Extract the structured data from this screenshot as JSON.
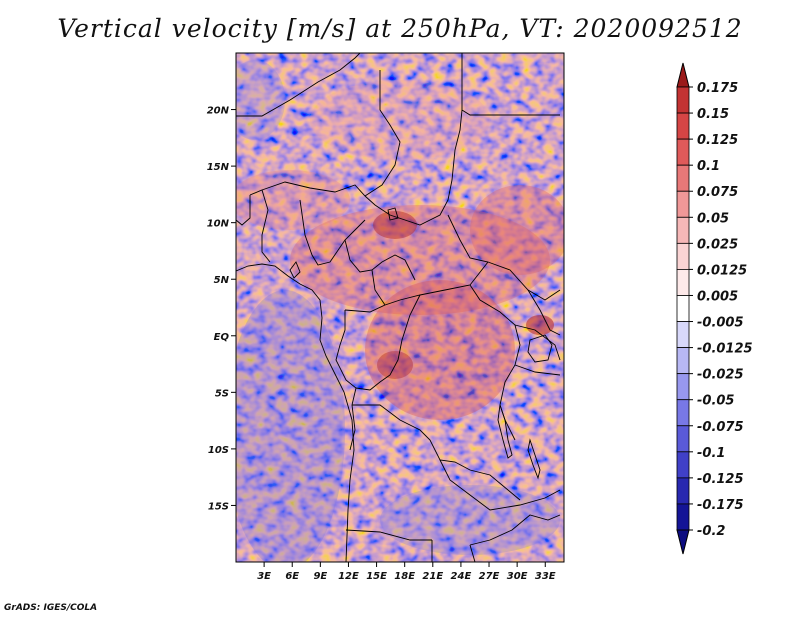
{
  "title": "Vertical velocity [m/s] at 250hPa, VT: 2020092512",
  "credit": "GrADS: IGES/COLA",
  "map": {
    "lon_range": [
      0,
      35
    ],
    "lat_range": [
      -20,
      25
    ],
    "lat_ticks": [
      {
        "value": 20,
        "label": "20N"
      },
      {
        "value": 15,
        "label": "15N"
      },
      {
        "value": 10,
        "label": "10N"
      },
      {
        "value": 5,
        "label": "5N"
      },
      {
        "value": 0,
        "label": "EQ"
      },
      {
        "value": -5,
        "label": "5S"
      },
      {
        "value": -10,
        "label": "10S"
      },
      {
        "value": -15,
        "label": "15S"
      }
    ],
    "lon_ticks": [
      {
        "value": 3,
        "label": "3E"
      },
      {
        "value": 6,
        "label": "6E"
      },
      {
        "value": 9,
        "label": "9E"
      },
      {
        "value": 12,
        "label": "12E"
      },
      {
        "value": 15,
        "label": "15E"
      },
      {
        "value": 18,
        "label": "18E"
      },
      {
        "value": 21,
        "label": "21E"
      },
      {
        "value": 24,
        "label": "24E"
      },
      {
        "value": 27,
        "label": "27E"
      },
      {
        "value": 30,
        "label": "30E"
      },
      {
        "value": 33,
        "label": "33E"
      }
    ]
  },
  "colorbar": {
    "levels": [
      {
        "label": "0.175",
        "color": "#b22222"
      },
      {
        "label": "0.15",
        "color": "#c33333"
      },
      {
        "label": "0.125",
        "color": "#d54545"
      },
      {
        "label": "0.1",
        "color": "#e05a5a"
      },
      {
        "label": "0.075",
        "color": "#e87878"
      },
      {
        "label": "0.05",
        "color": "#f09898"
      },
      {
        "label": "0.025",
        "color": "#f6b8b8"
      },
      {
        "label": "0.0125",
        "color": "#fad4d4"
      },
      {
        "label": "0.005",
        "color": "#fde9e9"
      },
      {
        "label": "-0.005",
        "color": "#ffffff"
      },
      {
        "label": "-0.0125",
        "color": "#d8d8fa"
      },
      {
        "label": "-0.025",
        "color": "#b8b8f4"
      },
      {
        "label": "-0.05",
        "color": "#9898ee"
      },
      {
        "label": "-0.075",
        "color": "#7878e6"
      },
      {
        "label": "-0.1",
        "color": "#5a5ad8"
      },
      {
        "label": "-0.125",
        "color": "#4040c8"
      },
      {
        "label": "-0.175",
        "color": "#2828b0"
      },
      {
        "label": "-0.2",
        "color": "#141496"
      }
    ],
    "top_arrow_color": "#9b1a1a",
    "bottom_arrow_color": "#0c0c80"
  }
}
